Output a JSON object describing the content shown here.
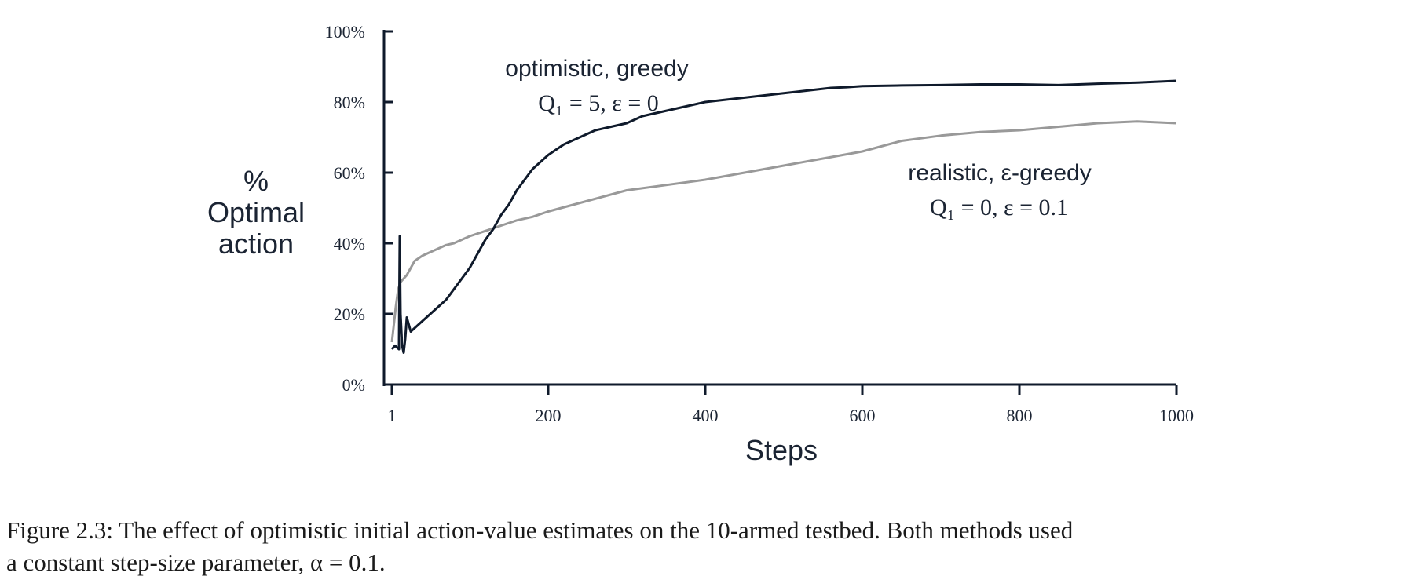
{
  "chart_data": {
    "type": "line",
    "xlabel": "Steps",
    "ylabel_lines": [
      "%",
      "Optimal",
      "action"
    ],
    "xlim": [
      1,
      1000
    ],
    "ylim": [
      0,
      100
    ],
    "xticks": [
      1,
      200,
      400,
      600,
      800,
      1000
    ],
    "xtick_labels": [
      "1",
      "200",
      "400",
      "600",
      "800",
      "1000"
    ],
    "yticks": [
      0,
      20,
      40,
      60,
      80,
      100
    ],
    "ytick_labels": [
      "0%",
      "20%",
      "40%",
      "60%",
      "80%",
      "100%"
    ],
    "grid": false,
    "series": [
      {
        "annotation_title": "optimistic, greedy",
        "annotation_formula": "Q₁ = 5,  ε = 0",
        "color": "#0f1a2b",
        "x": [
          1,
          5,
          10,
          11,
          12,
          14,
          16,
          18,
          20,
          25,
          30,
          40,
          50,
          60,
          70,
          80,
          90,
          100,
          110,
          120,
          130,
          140,
          150,
          160,
          170,
          180,
          190,
          200,
          220,
          240,
          260,
          280,
          300,
          320,
          340,
          360,
          380,
          400,
          420,
          440,
          460,
          480,
          500,
          520,
          540,
          560,
          580,
          600,
          650,
          700,
          750,
          800,
          850,
          900,
          950,
          1000
        ],
        "y": [
          10,
          11,
          10,
          42,
          20,
          11,
          9,
          13,
          19,
          15,
          16,
          18,
          20,
          22,
          24,
          27,
          30,
          33,
          37,
          41,
          44,
          48,
          51,
          55,
          58,
          61,
          63,
          65,
          68,
          70,
          72,
          73,
          74,
          76,
          77,
          78,
          79,
          80,
          80.5,
          81,
          81.5,
          82,
          82.5,
          83,
          83.5,
          84,
          84.2,
          84.5,
          84.7,
          84.8,
          85,
          85,
          84.8,
          85.2,
          85.5,
          86
        ]
      },
      {
        "annotation_title": "realistic, ε-greedy",
        "annotation_formula": "Q₁ = 0,  ε = 0.1",
        "color": "#999999",
        "x": [
          1,
          3,
          6,
          9,
          12,
          16,
          20,
          25,
          30,
          40,
          50,
          60,
          70,
          80,
          100,
          120,
          140,
          160,
          180,
          200,
          250,
          300,
          350,
          400,
          450,
          500,
          550,
          600,
          650,
          700,
          750,
          800,
          850,
          900,
          950,
          1000
        ],
        "y": [
          12,
          16,
          22,
          27,
          29,
          30,
          31,
          33,
          35,
          36.5,
          37.5,
          38.5,
          39.5,
          40,
          42,
          43.5,
          45,
          46.5,
          47.5,
          49,
          52,
          55,
          56.5,
          58,
          60,
          62,
          64,
          66,
          69,
          70.5,
          71.5,
          72,
          73,
          74,
          74.5,
          74
        ]
      }
    ]
  },
  "caption": {
    "line1": "Figure 2.3: The effect of optimistic initial action-value estimates on the 10-armed testbed. Both methods used",
    "line2": "a constant step-size parameter, α = 0.1."
  }
}
